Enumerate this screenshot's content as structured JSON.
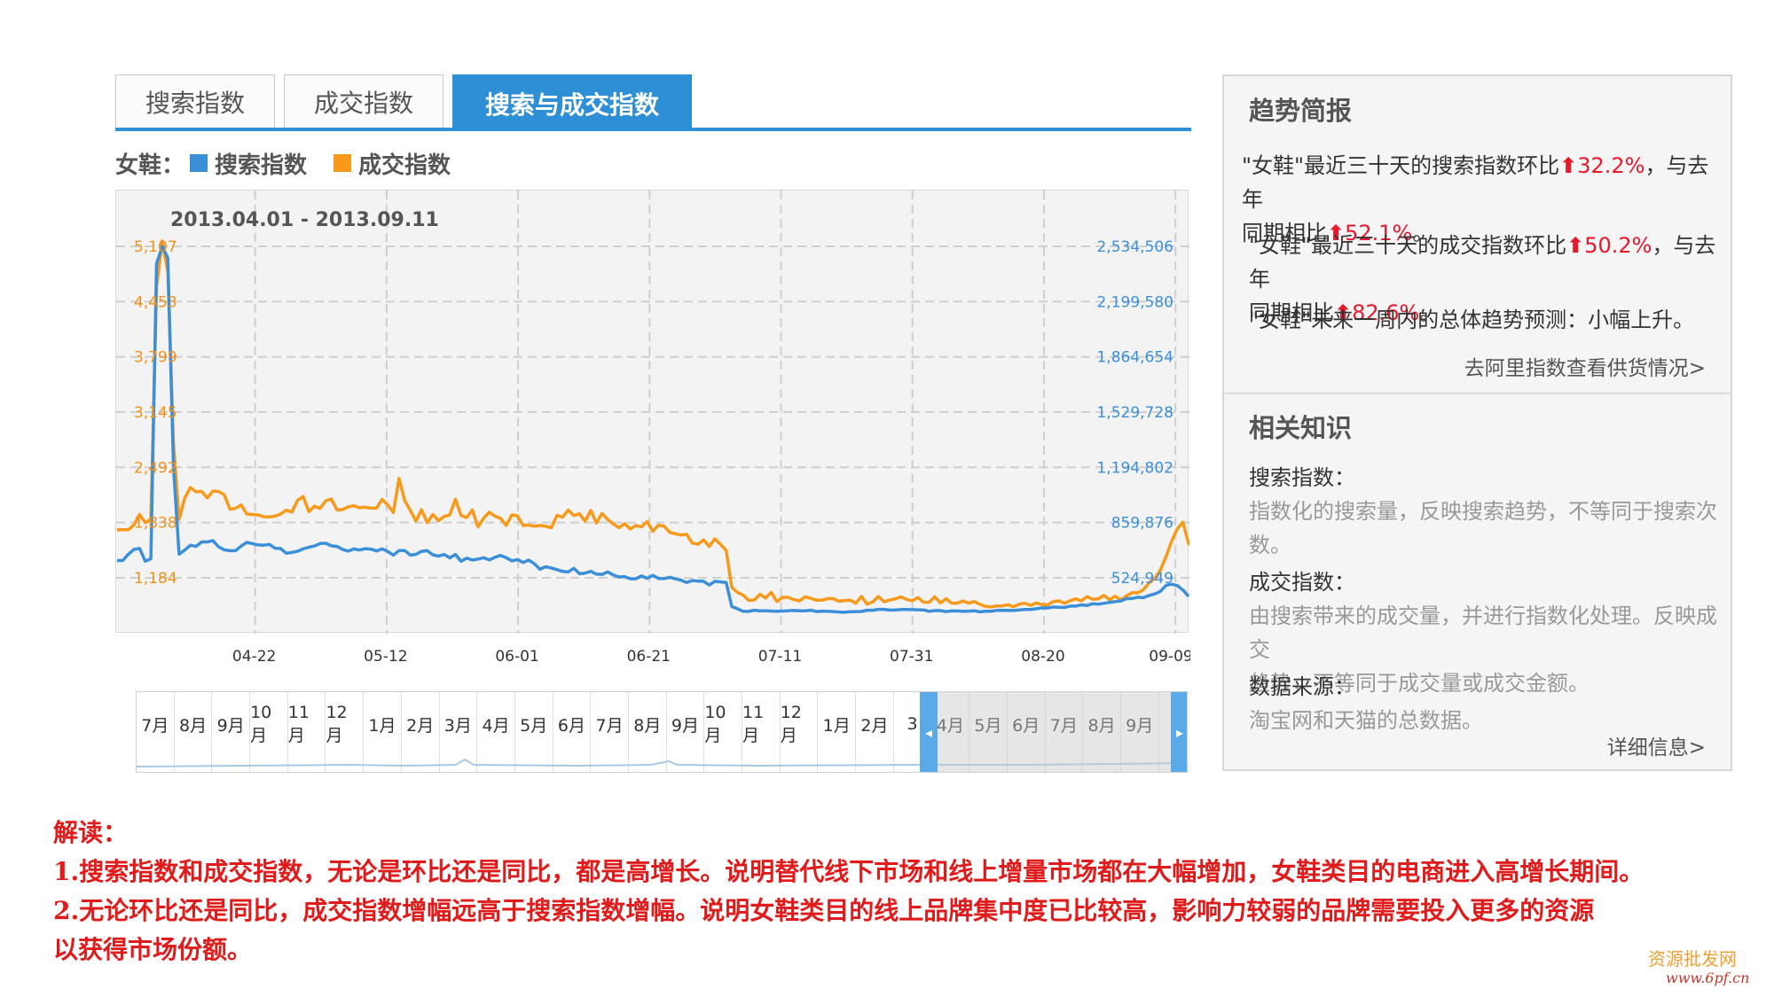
{
  "tabs": [
    {
      "label": "搜索指数"
    },
    {
      "label": "成交指数"
    },
    {
      "label": "搜索与成交指数"
    }
  ],
  "legend": {
    "prefix": "女鞋：",
    "search_label": "搜索指数",
    "trade_label": "成交指数"
  },
  "colors": {
    "search": "#3b8fd9",
    "trade": "#f79a1b",
    "accent": "#2f8fd6",
    "red": "#e8182a"
  },
  "chart_data": {
    "type": "line",
    "title": "2013.04.01 - 2013.09.11",
    "x_range": [
      "2013-04-01",
      "2013-09-11"
    ],
    "x_tick_labels": [
      "04-22",
      "05-12",
      "06-01",
      "06-21",
      "07-11",
      "07-31",
      "08-20",
      "09-09"
    ],
    "left_axis_ticks": [
      "1,184",
      "1,838",
      "2,492",
      "3,145",
      "3,799",
      "4,453",
      "5,107"
    ],
    "right_axis_ticks": [
      "524,949",
      "859,876",
      "1,194,802",
      "1,529,728",
      "1,864,654",
      "2,199,580",
      "2,534,506"
    ],
    "left_axis_values": [
      1184,
      1838,
      2492,
      3145,
      3799,
      4453,
      5107
    ],
    "right_axis_values": [
      524949,
      859876,
      1194802,
      1529728,
      1864654,
      2199580,
      2534506
    ],
    "series": [
      {
        "name": "搜索指数",
        "axis": "left",
        "values": [
          1389,
          1389,
          1463,
          1520,
          1532,
          1380,
          1411,
          4904,
          5107,
          4969,
          2492,
          1464,
          1512,
          1570,
          1555,
          1609,
          1609,
          1624,
          1551,
          1515,
          1505,
          1505,
          1559,
          1604,
          1589,
          1573,
          1570,
          1579,
          1534,
          1530,
          1475,
          1485,
          1499,
          1527,
          1546,
          1561,
          1590,
          1593,
          1563,
          1555,
          1520,
          1500,
          1526,
          1512,
          1529,
          1524,
          1502,
          1526,
          1496,
          1453,
          1507,
          1507,
          1453,
          1462,
          1498,
          1505,
          1456,
          1441,
          1461,
          1420,
          1461,
          1379,
          1417,
          1395,
          1406,
          1421,
          1396,
          1426,
          1449,
          1422,
          1384,
          1401,
          1365,
          1394,
          1350,
          1285,
          1315,
          1300,
          1281,
          1259,
          1253,
          1296,
          1232,
          1240,
          1261,
          1228,
          1225,
          1254,
          1217,
          1194,
          1198,
          1172,
          1172,
          1207,
          1178,
          1212,
          1177,
          1175,
          1190,
          1171,
          1157,
          1128,
          1153,
          1144,
          1143,
          1098,
          1143,
          1136,
          1129,
          844,
          818,
          787,
          786,
          800,
          793,
          794,
          791,
          789,
          791,
          794,
          797,
          793,
          793,
          800,
          784,
          790,
          789,
          784,
          779,
          776,
          783,
          784,
          785,
          800,
          800,
          811,
          811,
          802,
          802,
          809,
          808,
          807,
          805,
          804,
          788,
          796,
          796,
          784,
          793,
          792,
          786,
          790,
          794,
          781,
          787,
          787,
          799,
          800,
          798,
          797,
          804,
          808,
          810,
          818,
          828,
          827,
          838,
          836,
          834,
          849,
          849,
          864,
          857,
          878,
          872,
          882,
          895,
          903,
          910,
          938,
          940,
          954,
          949,
          975,
          994,
          1024,
          1094,
          1108,
          1092,
          1040,
          965
        ]
      },
      {
        "name": "成交指数",
        "axis": "left",
        "values": [
          1753,
          1753,
          1753,
          1810,
          1933,
          1837,
          1877,
          4627,
          5171,
          4809,
          2773,
          1875,
          2128,
          2253,
          2203,
          2207,
          2129,
          2211,
          2206,
          2169,
          1997,
          2005,
          2047,
          1940,
          1933,
          1929,
          1907,
          1905,
          1914,
          1939,
          1984,
          1962,
          2101,
          2146,
          1966,
          2032,
          2004,
          2095,
          2115,
          1986,
          1992,
          2024,
          2038,
          2013,
          2020,
          2008,
          2010,
          2112,
          2045,
          1957,
          2360,
          2098,
          1982,
          1855,
          1990,
          1836,
          1933,
          1860,
          1911,
          1928,
          2114,
          1922,
          1897,
          1987,
          1787,
          1890,
          1960,
          1914,
          1888,
          1804,
          1930,
          1916,
          1803,
          1809,
          1795,
          1804,
          1794,
          1777,
          1924,
          1902,
          1986,
          1921,
          1942,
          1853,
          1981,
          1831,
          1946,
          1874,
          1822,
          1777,
          1826,
          1761,
          1803,
          1788,
          1849,
          1735,
          1807,
          1796,
          1722,
          1705,
          1691,
          1700,
          1595,
          1582,
          1633,
          1555,
          1646,
          1581,
          1508,
          1071,
          1011,
          980,
          917,
          922,
          989,
          945,
          1011,
          903,
          953,
          953,
          926,
          911,
          960,
          942,
          919,
          919,
          938,
          938,
          906,
          915,
          920,
          883,
          964,
          872,
          900,
          963,
          901,
          921,
          935,
          958,
          929,
          912,
          950,
          896,
          895,
          960,
          886,
          935,
          884,
          884,
          910,
          884,
          903,
          870,
          845,
          839,
          851,
          853,
          865,
          842,
          872,
          883,
          858,
          886,
          867,
          863,
          902,
          911,
          883,
          913,
          935,
          911,
          962,
          930,
          935,
          976,
          924,
          967,
          921,
          971,
          1008,
          1007,
          1042,
          1124,
          1178,
          1275,
          1435,
          1617,
          1763,
          1843,
          1590,
          1554,
          1472
        ]
      }
    ]
  },
  "navigator": {
    "months": [
      "7月",
      "8月",
      "9月",
      "10月",
      "11月",
      "12月",
      "1月",
      "2月",
      "3月",
      "4月",
      "5月",
      "6月",
      "7月",
      "8月",
      "9月",
      "10月",
      "11月",
      "12月",
      "1月",
      "2月",
      "3",
      "4月",
      "5月",
      "6月",
      "7月",
      "8月",
      "9月"
    ]
  },
  "panel": {
    "trend_title": "趋势简报",
    "trend": [
      {
        "pre": "\"女鞋\"最近三十天的搜索指数环比",
        "pct1": "32.2%",
        "mid": "，与去年",
        "line2": "同期相比",
        "pct2": "52.1%",
        "end": "。"
      },
      {
        "pre": "\"女鞋\"最近三十天的成交指数环比",
        "pct1": "50.2%",
        "mid": "，与去年",
        "line2": "同期相比",
        "pct2": "82.6%",
        "end": "。"
      }
    ],
    "forecast": "\"女鞋\"未来一周内的总体趋势预测：小幅上升。",
    "supply_link": "去阿里指数查看供货情况>",
    "knowledge_title": "相关知识",
    "k_search_label": "搜索指数：",
    "k_search_desc1": "指数化的搜索量，反映搜索趋势，不等同于搜索次",
    "k_search_desc2": "数。",
    "k_trade_label": "成交指数：",
    "k_trade_desc1": "由搜索带来的成交量，并进行指数化处理。反映成交",
    "k_trade_desc2": "趋势，不等同于成交量或成交金额。",
    "k_source_label": "数据来源：",
    "k_source_desc": "淘宝网和天猫的总数据。",
    "detail_link": "详细信息>"
  },
  "interpretation": {
    "heading": "解读：",
    "line1": "1.搜索指数和成交指数，无论是环比还是同比，都是高增长。说明替代线下市场和线上增量市场都在大幅增加，女鞋类目的电商进入高增长期间。",
    "line2": "2.无论环比还是同比，成交指数增幅远高于搜索指数增幅。说明女鞋类目的线上品牌集中度已比较高，影响力较弱的品牌需要投入更多的资源",
    "line3": "以获得市场份额。"
  },
  "watermark": {
    "line1": "资源批发网",
    "line2": "www.6pf.cn"
  }
}
